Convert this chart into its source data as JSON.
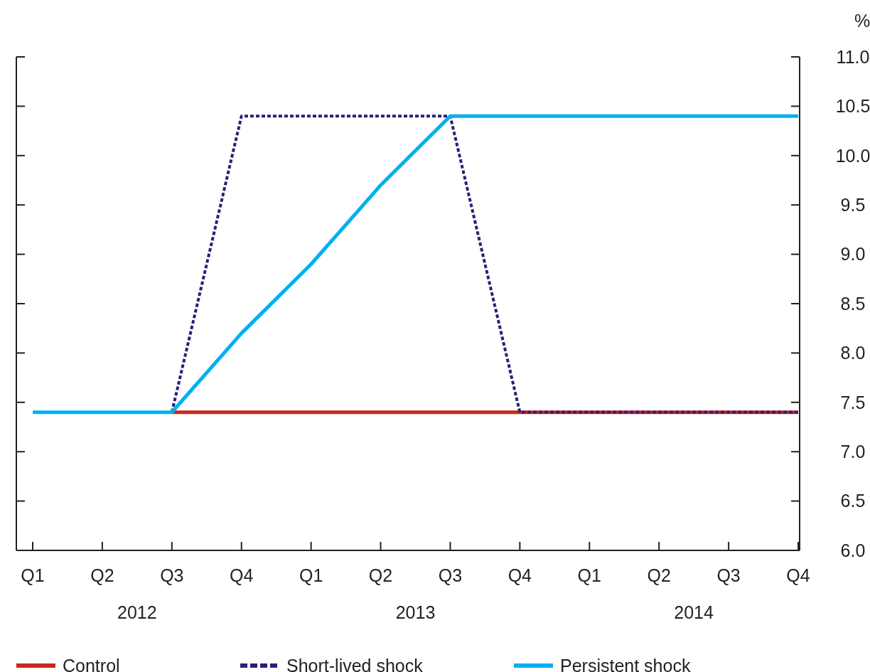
{
  "chart_data": {
    "type": "line",
    "ylabel": "%",
    "categories": [
      "Q1",
      "Q2",
      "Q3",
      "Q4",
      "Q1",
      "Q2",
      "Q3",
      "Q4",
      "Q1",
      "Q2",
      "Q3",
      "Q4"
    ],
    "annotations": [
      "2012",
      "2013",
      "2014"
    ],
    "series": [
      {
        "name": "Control",
        "color": "#c8281e",
        "line_style": "solid",
        "values": [
          null,
          null,
          7.4,
          7.4,
          7.4,
          7.4,
          7.4,
          7.4,
          7.4,
          7.4,
          7.4,
          7.4
        ]
      },
      {
        "name": "Short-lived shock",
        "color": "#2b1f7a",
        "line_style": "dotted",
        "values": [
          null,
          null,
          7.4,
          10.4,
          10.4,
          10.4,
          10.4,
          7.4,
          7.4,
          7.4,
          7.4,
          7.4
        ]
      },
      {
        "name": "Persistent shock",
        "color": "#00b0f0",
        "line_style": "solid",
        "values": [
          7.4,
          7.4,
          7.4,
          8.2,
          8.9,
          9.7,
          10.4,
          10.4,
          10.4,
          10.4,
          10.4,
          10.4
        ]
      }
    ],
    "ylim": [
      6.0,
      11.0
    ],
    "yticks": [
      {
        "value": 6,
        "label": "6.0"
      },
      6.5,
      {
        "value": 7,
        "label": "7.0"
      },
      7.5,
      {
        "value": 8,
        "label": "8.0"
      },
      8.5,
      {
        "value": 9,
        "label": "9.0"
      },
      9.5,
      {
        "value": 10,
        "label": "10.0"
      },
      10.5,
      {
        "value": 11,
        "label": "11.0"
      }
    ],
    "grid": false,
    "legend": "bottom",
    "marker": "none"
  }
}
